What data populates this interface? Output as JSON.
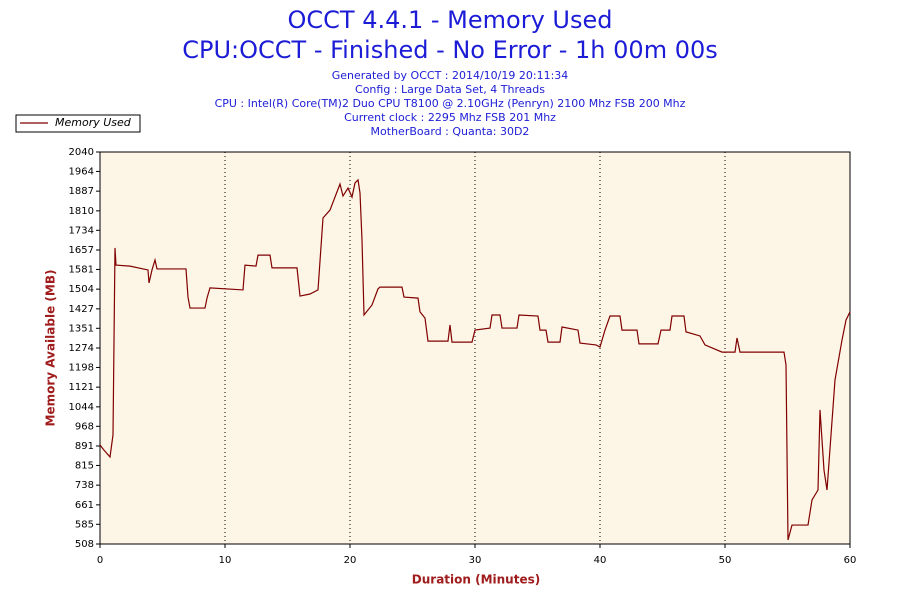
{
  "chart_data": {
    "type": "line",
    "title": "OCCT 4.4.1 - Memory Used",
    "subtitle": "CPU:OCCT - Finished - No Error - 1h 00m 00s",
    "info": [
      "Generated by OCCT : 2014/10/19 20:11:34",
      "Config : Large Data Set, 4 Threads",
      "CPU : Intel(R) Core(TM)2 Duo CPU T8100 @ 2.10GHz (Penryn) 2100 Mhz FSB 200 Mhz",
      "Current clock : 2295 Mhz FSB 201 Mhz",
      "MotherBoard : Quanta: 30D2"
    ],
    "xlabel": "Duration (Minutes)",
    "ylabel": "Memory Available (MB)",
    "legend": "top-left",
    "grid": true,
    "xlim": [
      0,
      60
    ],
    "xticks": [
      0,
      10,
      20,
      30,
      40,
      50,
      60
    ],
    "ylim": [
      508,
      2040
    ],
    "yticks": [
      508,
      585,
      661,
      738,
      815,
      891,
      968,
      1044,
      1121,
      1198,
      1274,
      1351,
      1427,
      1504,
      1581,
      1657,
      1734,
      1810,
      1887,
      1964,
      2040
    ],
    "x": [
      0,
      0.32,
      0.8,
      1.04,
      1.2,
      1.28,
      2.4,
      3.84,
      3.92,
      4.16,
      4.4,
      4.56,
      6.88,
      7.04,
      7.2,
      8.4,
      8.56,
      8.8,
      11.44,
      11.6,
      12.48,
      12.64,
      13.6,
      13.76,
      15.76,
      16,
      16.8,
      17.44,
      17.84,
      18.4,
      19.2,
      19.44,
      19.84,
      20.16,
      20.4,
      20.64,
      20.8,
      20.96,
      21.12,
      21.76,
      22.24,
      22.4,
      24.16,
      24.32,
      25.44,
      25.6,
      26,
      26.24,
      27.84,
      28,
      28.16,
      29.76,
      30,
      31.2,
      31.36,
      32,
      32.16,
      33.36,
      33.52,
      35.04,
      35.2,
      35.68,
      35.84,
      36.8,
      36.96,
      38.24,
      38.4,
      39.68,
      40,
      40.4,
      40.8,
      41.6,
      41.76,
      42.96,
      43.12,
      44.64,
      44.88,
      45.6,
      45.76,
      46.72,
      46.88,
      48,
      48.4,
      49.76,
      50.8,
      50.96,
      51.2,
      54.72,
      54.88,
      55.04,
      55.36,
      56.64,
      56.96,
      57.44,
      57.6,
      57.92,
      58.16,
      58.8,
      59.36,
      59.68,
      60
    ],
    "series": [
      {
        "name": "Memory Used",
        "color": "#800000",
        "values": [
          895,
          875,
          848,
          934,
          1665,
          1598,
          1594,
          1579,
          1528,
          1579,
          1618,
          1583,
          1583,
          1473,
          1430,
          1430,
          1469,
          1509,
          1501,
          1598,
          1594,
          1637,
          1637,
          1587,
          1587,
          1477,
          1485,
          1501,
          1782,
          1813,
          1915,
          1868,
          1899,
          1864,
          1919,
          1931,
          1880,
          1696,
          1403,
          1442,
          1505,
          1512,
          1512,
          1473,
          1469,
          1415,
          1391,
          1301,
          1301,
          1364,
          1297,
          1297,
          1344,
          1352,
          1403,
          1403,
          1352,
          1352,
          1403,
          1399,
          1344,
          1344,
          1297,
          1297,
          1356,
          1344,
          1293,
          1286,
          1278,
          1344,
          1399,
          1399,
          1344,
          1344,
          1290,
          1290,
          1344,
          1344,
          1399,
          1399,
          1337,
          1321,
          1286,
          1258,
          1258,
          1313,
          1258,
          1258,
          1208,
          524,
          582,
          582,
          680,
          719,
          1032,
          797,
          719,
          1149,
          1305,
          1383,
          1415
        ]
      }
    ]
  }
}
